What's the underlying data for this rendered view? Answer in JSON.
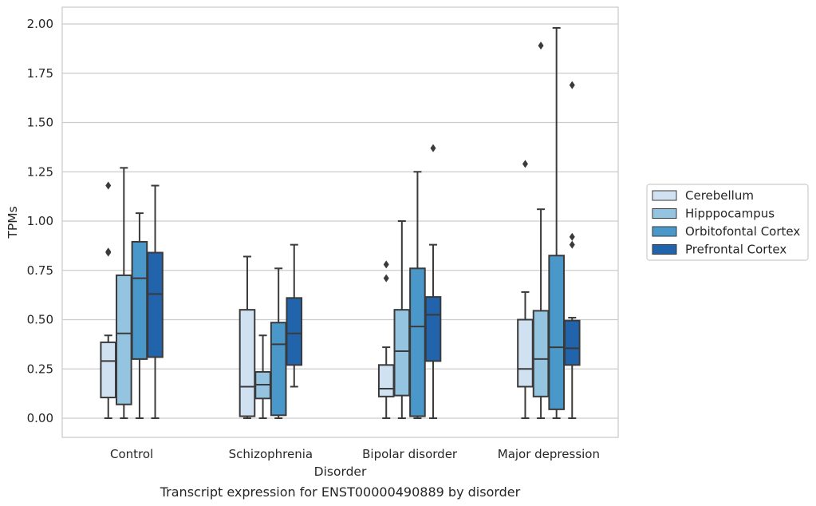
{
  "chart_data": {
    "type": "box",
    "title": "",
    "caption": "Transcript expression for ENST00000490889 by disorder",
    "xlabel": "Disorder",
    "ylabel": "TPMs",
    "ylim": [
      -0.1,
      2.08
    ],
    "yticks": [
      "0.00",
      "0.25",
      "0.50",
      "0.75",
      "1.00",
      "1.25",
      "1.50",
      "1.75",
      "2.00"
    ],
    "ytick_values": [
      0,
      0.25,
      0.5,
      0.75,
      1.0,
      1.25,
      1.5,
      1.75,
      2.0
    ],
    "grid": "horizontal",
    "legend_position": "right",
    "categories": [
      "Control",
      "Schizophrenia",
      "Bipolar disorder",
      "Major depression"
    ],
    "series": [
      {
        "name": "Cerebellum",
        "color": "#d0e1f2",
        "boxes": [
          {
            "whisker_low": 0.0,
            "q1": 0.105,
            "median": 0.29,
            "q3": 0.385,
            "whisker_high": 0.42,
            "outliers": [
              0.84,
              0.845,
              1.18
            ]
          },
          {
            "whisker_low": 0.0,
            "q1": 0.01,
            "median": 0.16,
            "q3": 0.55,
            "whisker_high": 0.82,
            "outliers": []
          },
          {
            "whisker_low": 0.0,
            "q1": 0.11,
            "median": 0.15,
            "q3": 0.27,
            "whisker_high": 0.36,
            "outliers": [
              0.71,
              0.78
            ]
          },
          {
            "whisker_low": 0.0,
            "q1": 0.16,
            "median": 0.25,
            "q3": 0.5,
            "whisker_high": 0.64,
            "outliers": [
              1.29
            ]
          }
        ]
      },
      {
        "name": "Hipppocampus",
        "color": "#94c4df",
        "boxes": [
          {
            "whisker_low": 0.0,
            "q1": 0.07,
            "median": 0.43,
            "q3": 0.725,
            "whisker_high": 1.27,
            "outliers": []
          },
          {
            "whisker_low": 0.0,
            "q1": 0.1,
            "median": 0.17,
            "q3": 0.235,
            "whisker_high": 0.42,
            "outliers": []
          },
          {
            "whisker_low": 0.0,
            "q1": 0.115,
            "median": 0.34,
            "q3": 0.55,
            "whisker_high": 1.0,
            "outliers": []
          },
          {
            "whisker_low": 0.0,
            "q1": 0.11,
            "median": 0.3,
            "q3": 0.545,
            "whisker_high": 1.06,
            "outliers": [
              1.89
            ]
          }
        ]
      },
      {
        "name": "Orbitofontal Cortex",
        "color": "#4a98c9",
        "boxes": [
          {
            "whisker_low": 0.0,
            "q1": 0.3,
            "median": 0.71,
            "q3": 0.895,
            "whisker_high": 1.04,
            "outliers": []
          },
          {
            "whisker_low": 0.0,
            "q1": 0.015,
            "median": 0.375,
            "q3": 0.485,
            "whisker_high": 0.76,
            "outliers": []
          },
          {
            "whisker_low": 0.0,
            "q1": 0.01,
            "median": 0.465,
            "q3": 0.76,
            "whisker_high": 1.25,
            "outliers": []
          },
          {
            "whisker_low": 0.0,
            "q1": 0.045,
            "median": 0.36,
            "q3": 0.825,
            "whisker_high": 1.98,
            "outliers": []
          }
        ]
      },
      {
        "name": "Prefrontal Cortex",
        "color": "#2164ab",
        "boxes": [
          {
            "whisker_low": 0.0,
            "q1": 0.31,
            "median": 0.63,
            "q3": 0.84,
            "whisker_high": 1.18,
            "outliers": []
          },
          {
            "whisker_low": 0.16,
            "q1": 0.27,
            "median": 0.43,
            "q3": 0.61,
            "whisker_high": 0.88,
            "outliers": []
          },
          {
            "whisker_low": 0.0,
            "q1": 0.29,
            "median": 0.525,
            "q3": 0.615,
            "whisker_high": 0.88,
            "outliers": [
              1.37
            ]
          },
          {
            "whisker_low": 0.0,
            "q1": 0.27,
            "median": 0.355,
            "q3": 0.495,
            "whisker_high": 0.51,
            "outliers": [
              0.88,
              0.92,
              1.69
            ]
          }
        ]
      }
    ]
  }
}
